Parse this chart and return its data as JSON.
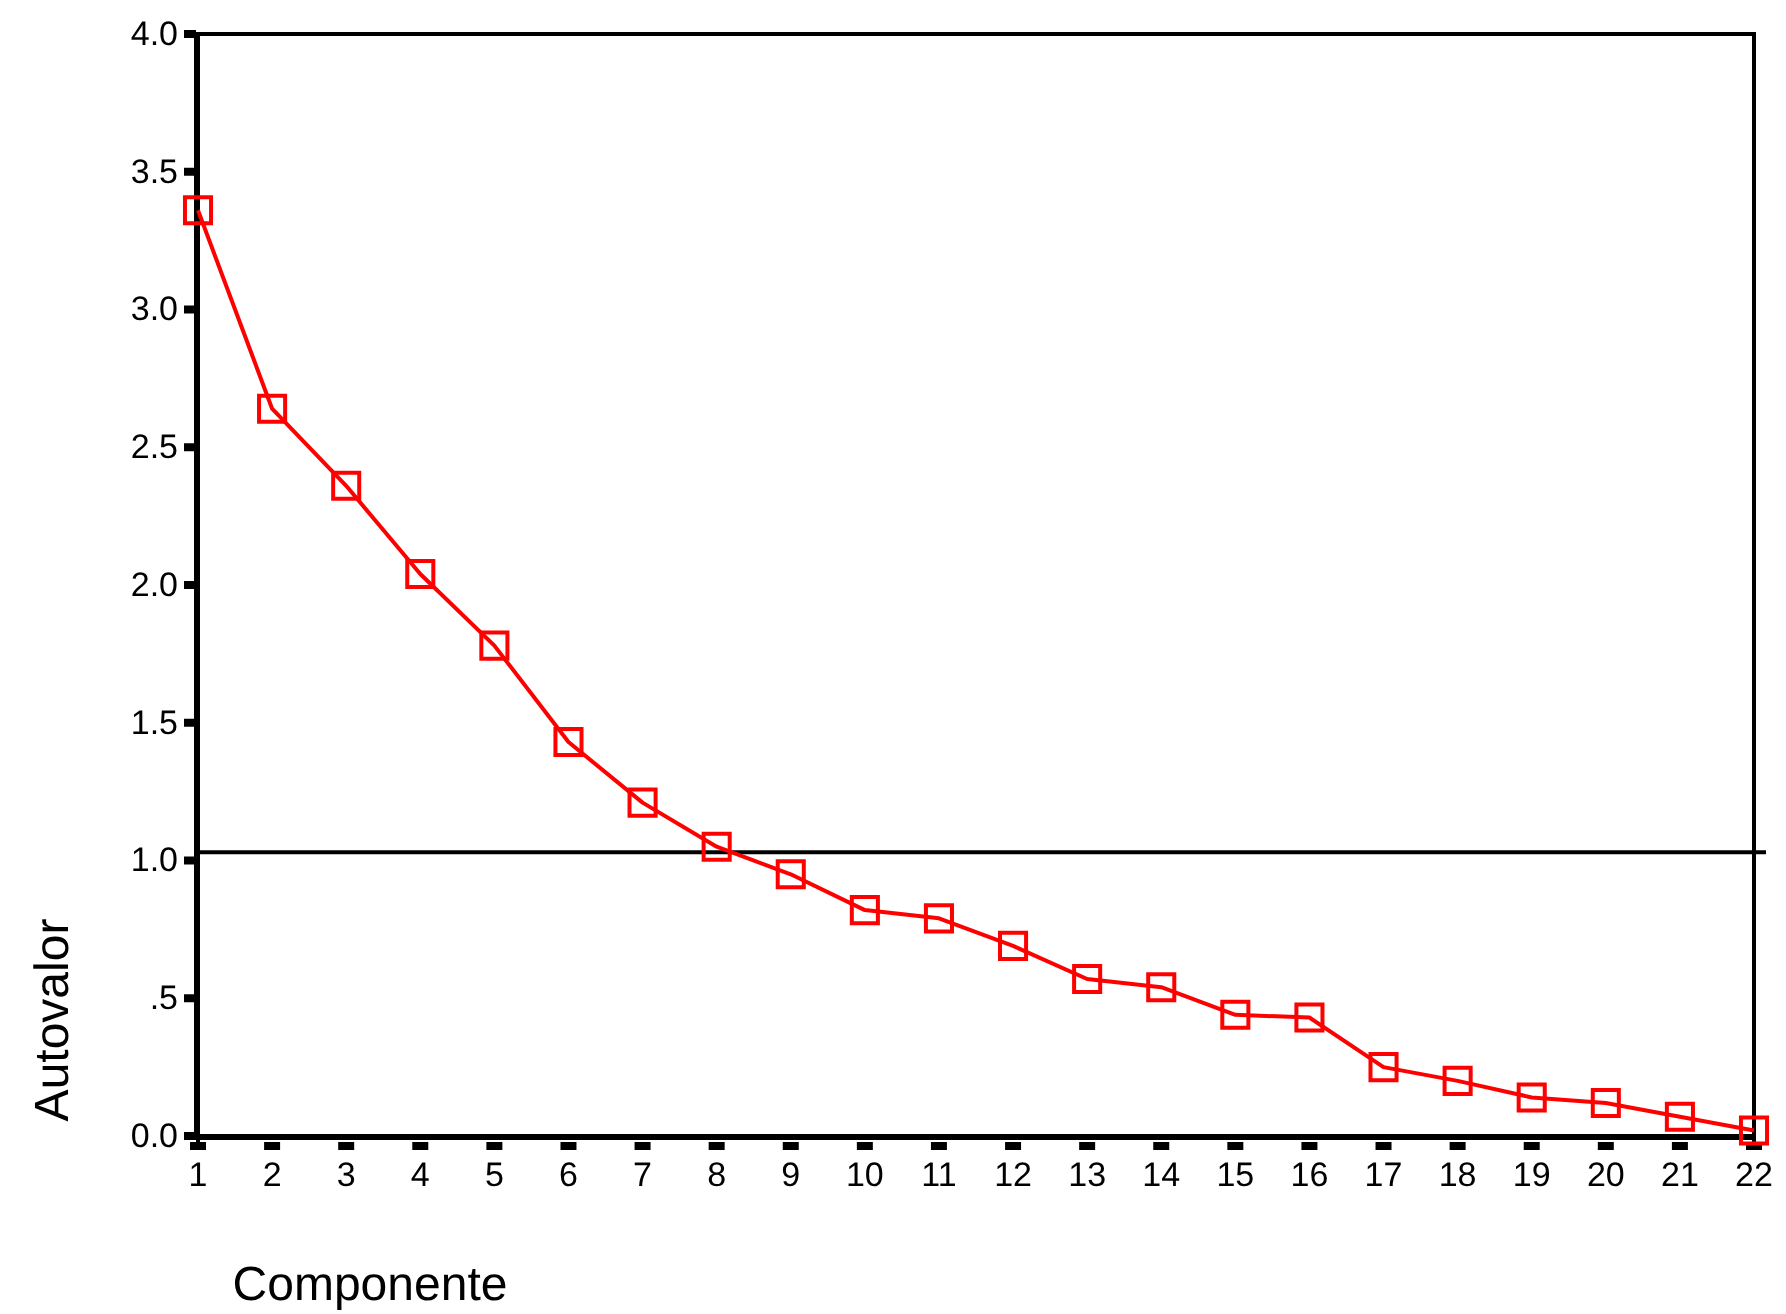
{
  "chart_data": {
    "type": "line",
    "xlabel": "Componente",
    "ylabel": "Autovalor",
    "x": [
      1,
      2,
      3,
      4,
      5,
      6,
      7,
      8,
      9,
      10,
      11,
      12,
      13,
      14,
      15,
      16,
      17,
      18,
      19,
      20,
      21,
      22
    ],
    "xlim": [
      1,
      22
    ],
    "xticks": [
      1,
      2,
      3,
      4,
      5,
      6,
      7,
      8,
      9,
      10,
      11,
      12,
      13,
      14,
      15,
      16,
      17,
      18,
      19,
      20,
      21,
      22
    ],
    "series": [
      {
        "color": "#ff0000",
        "values": [
          3.36,
          2.64,
          2.36,
          2.04,
          1.78,
          1.43,
          1.21,
          1.05,
          0.95,
          0.82,
          0.79,
          0.69,
          0.57,
          0.54,
          0.44,
          0.43,
          0.25,
          0.2,
          0.14,
          0.12,
          0.07,
          0.02
        ]
      }
    ],
    "ylim": [
      0,
      4
    ],
    "yticks": [
      {
        "value": 0,
        "label": "0.0"
      },
      {
        "value": 0.5,
        "label": ".5"
      },
      {
        "value": 1,
        "label": "1.0"
      },
      {
        "value": 1.5,
        "label": "1.5"
      },
      {
        "value": 2,
        "label": "2.0"
      },
      {
        "value": 2.5,
        "label": "2.5"
      },
      {
        "value": 3,
        "label": "3.0"
      },
      {
        "value": 3.5,
        "label": "3.5"
      },
      {
        "value": 4,
        "label": "4.0"
      }
    ],
    "ref_lines": [
      {
        "axis": "y",
        "value": 1.03,
        "color": "#000000"
      }
    ],
    "grid": false,
    "marker": "square",
    "line_style": "solid"
  }
}
